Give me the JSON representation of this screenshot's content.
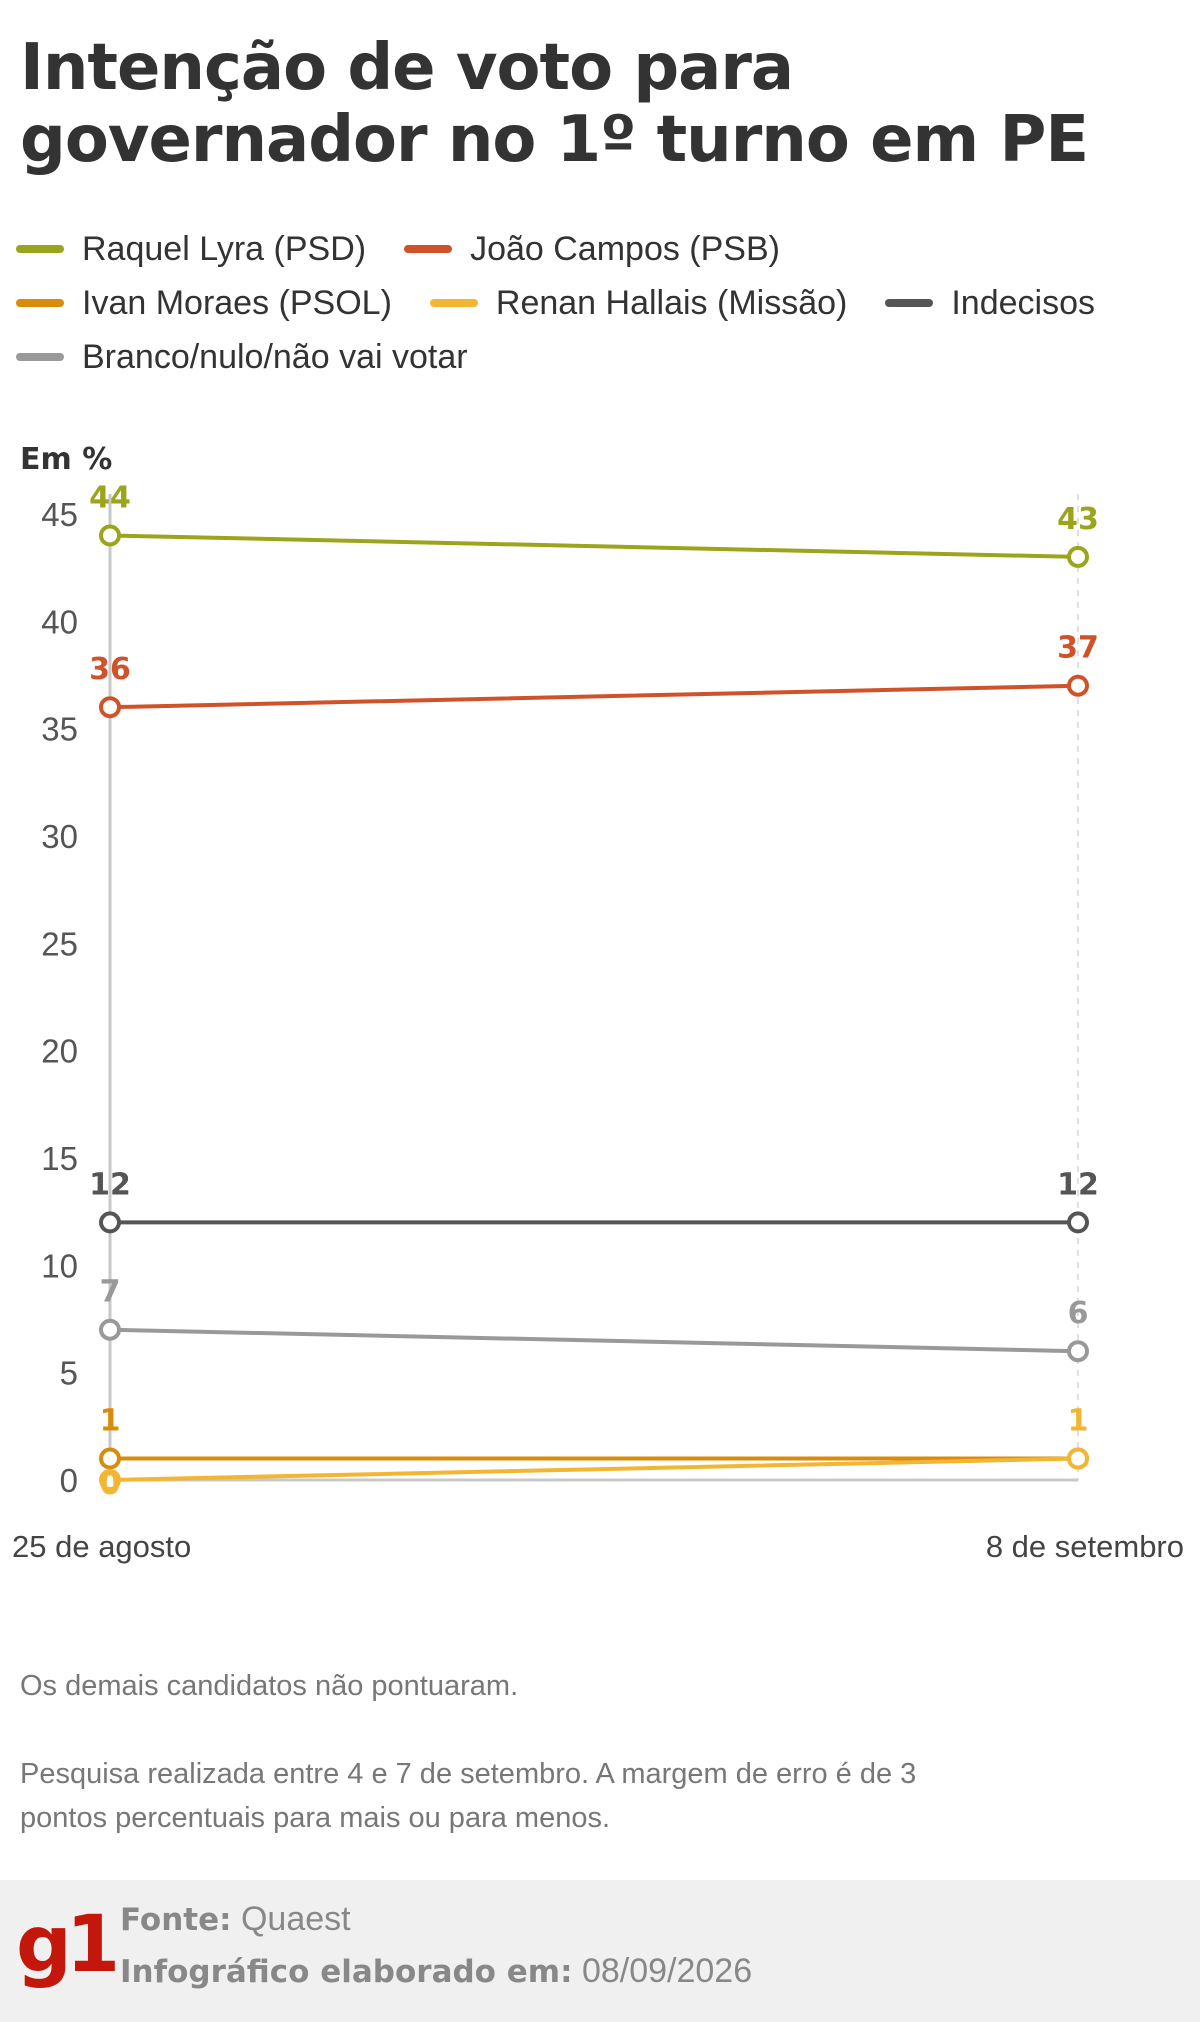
{
  "title": "Intenção de voto para governador no 1º turno em PE",
  "legend": [
    {
      "label": "Raquel Lyra (PSD)",
      "color": "#9aa51c"
    },
    {
      "label": "João Campos (PSB)",
      "color": "#d0522b"
    },
    {
      "label": "Ivan Moraes (PSOL)",
      "color": "#d98c0a"
    },
    {
      "label": "Renan Hallais (Missão)",
      "color": "#f2b632"
    },
    {
      "label": "Indecisos",
      "color": "#555555"
    },
    {
      "label": "Branco/nulo/não vai votar",
      "color": "#999999"
    }
  ],
  "unit_label": "Em %",
  "chart_data": {
    "type": "line",
    "x": [
      "25 de agosto",
      "8 de setembro"
    ],
    "ylim": [
      0,
      45
    ],
    "yticks": [
      0,
      5,
      10,
      15,
      20,
      25,
      30,
      35,
      40,
      45
    ],
    "grid": false,
    "legend_position": "top",
    "series": [
      {
        "name": "Raquel Lyra (PSD)",
        "values": [
          44,
          43
        ],
        "labels": [
          "44",
          "43"
        ],
        "color": "#9aa51c"
      },
      {
        "name": "João Campos (PSB)",
        "values": [
          36,
          37
        ],
        "labels": [
          "36",
          "37"
        ],
        "color": "#d0522b"
      },
      {
        "name": "Indecisos",
        "values": [
          12,
          12
        ],
        "labels": [
          "12",
          "12"
        ],
        "color": "#555555"
      },
      {
        "name": "Branco/nulo/não vai votar",
        "values": [
          7,
          6
        ],
        "labels": [
          "7",
          "6"
        ],
        "color": "#999999"
      },
      {
        "name": "Ivan Moraes (PSOL)",
        "values": [
          1,
          1
        ],
        "labels": [
          "1",
          ""
        ],
        "color": "#d98c0a"
      },
      {
        "name": "Renan Hallais (Missão)",
        "values": [
          0,
          1
        ],
        "labels": [
          "0",
          "1"
        ],
        "color": "#f2b632"
      }
    ]
  },
  "notes": [
    "Os demais candidatos não pontuaram.",
    "Pesquisa realizada entre 4 e 7 de setembro. A margem de erro é de 3 pontos percentuais para mais ou para menos."
  ],
  "footer": {
    "logo": "g1",
    "source_label": "Fonte:",
    "source_value": "Quaest",
    "date_label": "Infográfico elaborado em:",
    "date_value": "08/09/2026"
  }
}
